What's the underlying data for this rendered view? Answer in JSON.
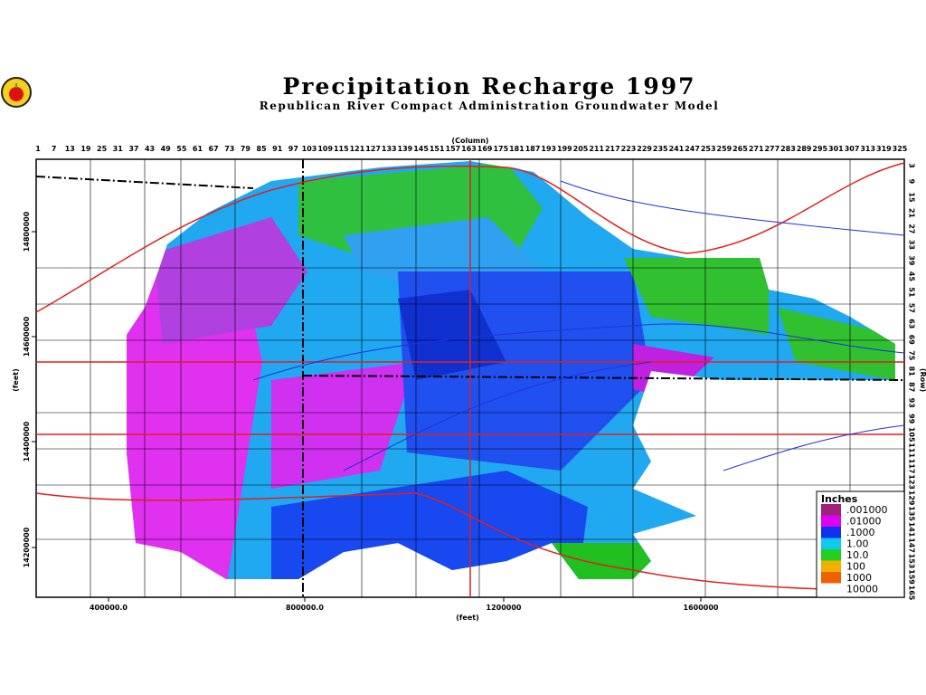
{
  "header": {
    "title": "Precipitation Recharge 1997",
    "subtitle": "Republican River Compact Administration Groundwater Model"
  },
  "axes": {
    "column_label": "(Column)",
    "row_label": "(Row)",
    "x_label": "(feet)",
    "y_label": "(feet)",
    "columns": [
      1,
      7,
      13,
      19,
      25,
      31,
      37,
      43,
      49,
      55,
      61,
      67,
      73,
      79,
      85,
      91,
      97,
      103,
      109,
      115,
      121,
      127,
      133,
      139,
      145,
      151,
      157,
      163,
      169,
      175,
      181,
      187,
      193,
      199,
      205,
      211,
      217,
      223,
      229,
      235,
      241,
      247,
      253,
      259,
      265,
      271,
      277,
      283,
      289,
      295,
      301,
      307,
      313,
      319,
      325
    ],
    "rows": [
      3,
      9,
      15,
      21,
      27,
      33,
      39,
      45,
      51,
      57,
      63,
      69,
      75,
      81,
      87,
      93,
      99,
      105,
      111,
      117,
      123,
      129,
      135,
      141,
      147,
      153,
      159,
      165
    ],
    "x_ticks": [
      "400000.0",
      "800000.0",
      "1200000",
      "1600000"
    ],
    "y_ticks": [
      "14800000",
      "14600000",
      "14400000",
      "14200000"
    ]
  },
  "legend": {
    "title": "Inches",
    "items": [
      {
        "label": ".001000",
        "color": "#a0207a"
      },
      {
        "label": ".01000",
        "color": "#e000f0"
      },
      {
        "label": ".1000",
        "color": "#1030f0"
      },
      {
        "label": "1.00",
        "color": "#10c8f0"
      },
      {
        "label": "10.0",
        "color": "#20d020"
      },
      {
        "label": "100",
        "color": "#f0b000"
      },
      {
        "label": "1000",
        "color": "#f06000"
      },
      {
        "label": "10000",
        "color": "#ffffff"
      }
    ]
  }
}
